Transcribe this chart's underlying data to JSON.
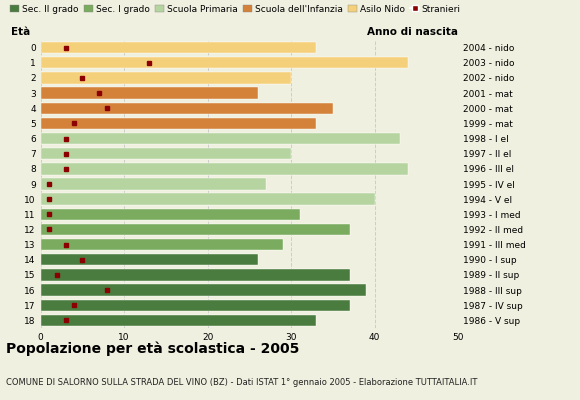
{
  "title": "Popolazione per età scolastica - 2005",
  "subtitle": "COMUNE DI SALORNO SULLA STRADA DEL VINO (BZ) - Dati ISTAT 1° gennaio 2005 - Elaborazione TUTTAITALIA.IT",
  "ylabel_left": "Età",
  "ylabel_right": "Anno di nascita",
  "xlim": [
    0,
    50
  ],
  "xticks": [
    0,
    10,
    20,
    30,
    40,
    50
  ],
  "ages": [
    18,
    17,
    16,
    15,
    14,
    13,
    12,
    11,
    10,
    9,
    8,
    7,
    6,
    5,
    4,
    3,
    2,
    1,
    0
  ],
  "bar_values": [
    33,
    37,
    39,
    37,
    26,
    29,
    37,
    31,
    40,
    27,
    44,
    30,
    43,
    33,
    35,
    26,
    30,
    44,
    33
  ],
  "stranieri": [
    3,
    4,
    8,
    2,
    5,
    3,
    1,
    1,
    1,
    1,
    3,
    3,
    3,
    4,
    8,
    7,
    5,
    13,
    3
  ],
  "right_labels": [
    "1986 - V sup",
    "1987 - IV sup",
    "1988 - III sup",
    "1989 - II sup",
    "1990 - I sup",
    "1991 - III med",
    "1992 - II med",
    "1993 - I med",
    "1994 - V el",
    "1995 - IV el",
    "1996 - III el",
    "1997 - II el",
    "1998 - I el",
    "1999 - mat",
    "2000 - mat",
    "2001 - mat",
    "2002 - nido",
    "2003 - nido",
    "2004 - nido"
  ],
  "school_colors_ordered": [
    [
      "Sec. II grado",
      "#4a7c3f"
    ],
    [
      "Sec. I grado",
      "#7aab5e"
    ],
    [
      "Scuola Primaria",
      "#b5d4a0"
    ],
    [
      "Scuola dell'Infanzia",
      "#d4813a"
    ],
    [
      "Asilo Nido",
      "#f5d07a"
    ]
  ],
  "age_school": {
    "18": "Sec. II grado",
    "17": "Sec. II grado",
    "16": "Sec. II grado",
    "15": "Sec. II grado",
    "14": "Sec. II grado",
    "13": "Sec. I grado",
    "12": "Sec. I grado",
    "11": "Sec. I grado",
    "10": "Scuola Primaria",
    "9": "Scuola Primaria",
    "8": "Scuola Primaria",
    "7": "Scuola Primaria",
    "6": "Scuola Primaria",
    "5": "Scuola dell'Infanzia",
    "4": "Scuola dell'Infanzia",
    "3": "Scuola dell'Infanzia",
    "2": "Asilo Nido",
    "1": "Asilo Nido",
    "0": "Asilo Nido"
  },
  "stranieri_color": "#8b0000",
  "bg_color": "#f0f0e0",
  "grid_color": "#cccccc",
  "title_fontsize": 10,
  "subtitle_fontsize": 6,
  "legend_fontsize": 6.5,
  "tick_fontsize": 6.5,
  "label_fontsize": 7.5
}
